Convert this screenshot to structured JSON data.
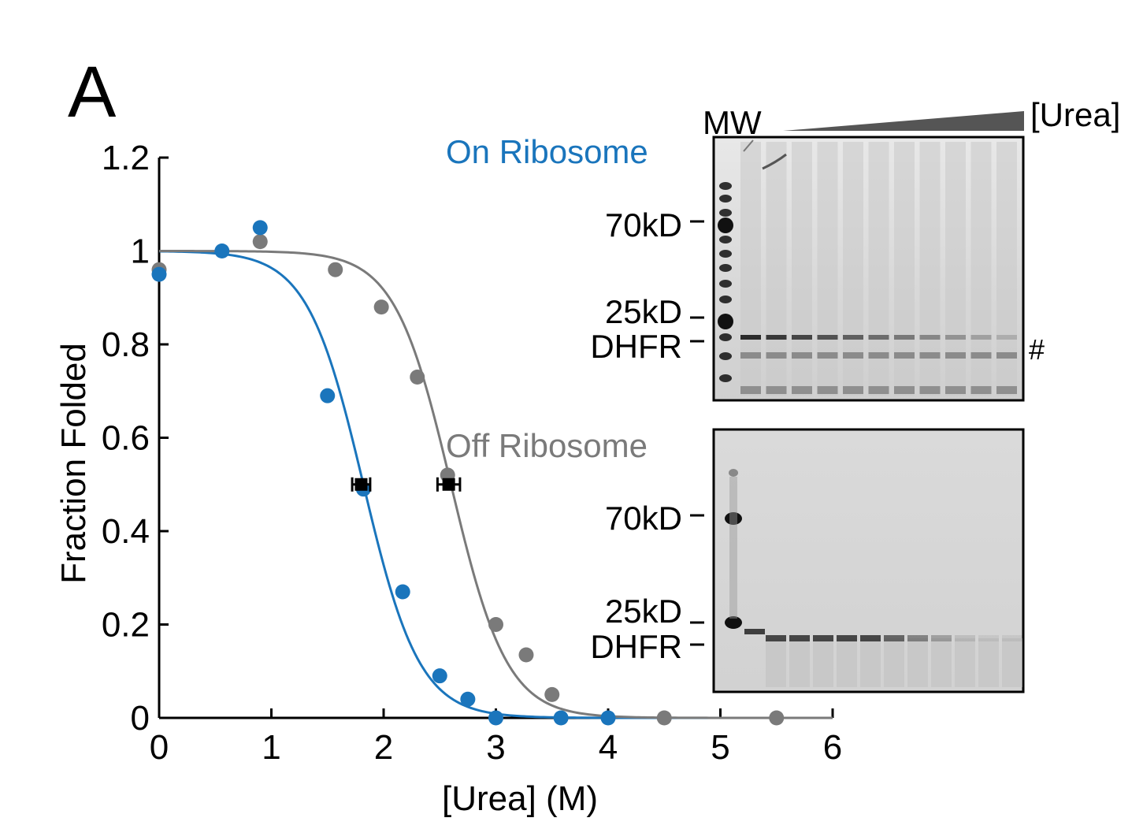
{
  "panel": {
    "letter": "A"
  },
  "colors": {
    "on_ribosome": "#1a75bc",
    "off_ribosome": "#7a7a7a",
    "axis": "#000000",
    "midpoint_marker": "#000000"
  },
  "chart_data": {
    "type": "scatter",
    "xlabel": "[Urea] (M)",
    "ylabel": "Fraction Folded",
    "xlim": [
      0,
      6
    ],
    "ylim": [
      0,
      1.2
    ],
    "x_ticks": [
      0,
      1,
      2,
      3,
      4,
      5,
      6
    ],
    "y_ticks": [
      0,
      0.2,
      0.4,
      0.6,
      0.8,
      1,
      1.2
    ],
    "x_tick_labels": [
      "0",
      "1",
      "2",
      "3",
      "4",
      "5",
      "6"
    ],
    "y_tick_labels": [
      "0",
      "0.2",
      "0.4",
      "0.6",
      "0.8",
      "1",
      "1.2"
    ],
    "grid": false,
    "series": [
      {
        "name": "On Ribosome",
        "color": "#1a75bc",
        "x": [
          0,
          0.56,
          0.9,
          1.5,
          1.82,
          2.17,
          2.5,
          2.75,
          3.0,
          3.58,
          4.0
        ],
        "y": [
          0.95,
          1.0,
          1.05,
          0.69,
          0.49,
          0.27,
          0.09,
          0.04,
          0.0,
          0.0,
          0.0
        ],
        "fit": {
          "model": "sigmoid",
          "top": 1.0,
          "midpoint": 1.82,
          "slope": 0.25
        },
        "midpoint": {
          "x": 1.8,
          "y": 0.5,
          "xerr": 0.08
        }
      },
      {
        "name": "Off Ribosome",
        "color": "#7a7a7a",
        "x": [
          0,
          0.9,
          1.57,
          1.98,
          2.3,
          2.57,
          3.0,
          3.27,
          3.5,
          4.5,
          5.5
        ],
        "y": [
          0.96,
          1.02,
          0.96,
          0.88,
          0.73,
          0.52,
          0.2,
          0.135,
          0.05,
          0.0,
          0.0
        ],
        "fit": {
          "model": "sigmoid",
          "top": 1.0,
          "midpoint": 2.6,
          "slope": 0.25
        },
        "midpoint": {
          "x": 2.58,
          "y": 0.5,
          "xerr": 0.1
        }
      }
    ]
  },
  "gels": {
    "mw_label": "MW",
    "urea_label": "[Urea]",
    "hash_label": "#",
    "top": {
      "markers": [
        "70kD",
        "25kD",
        "DHFR"
      ]
    },
    "bottom": {
      "markers": [
        "70kD",
        "25kD",
        "DHFR"
      ]
    }
  }
}
